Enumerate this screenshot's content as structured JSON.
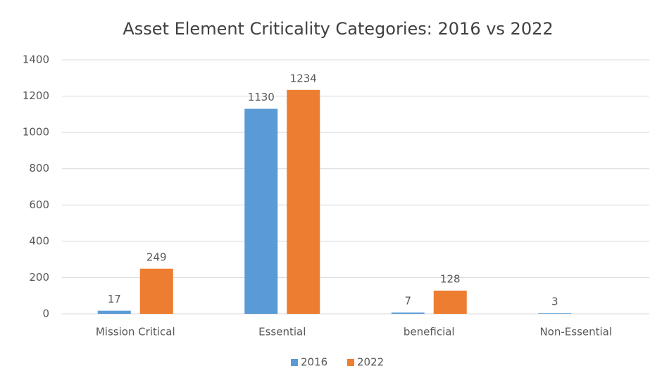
{
  "chart_data": {
    "type": "bar",
    "title": "Asset Element Criticality Categories: 2016 vs 2022",
    "categories": [
      "Mission Critical",
      "Essential",
      "beneficial",
      "Non-Essential"
    ],
    "series": [
      {
        "name": "2016",
        "color": "#5b9bd5",
        "values": [
          17,
          1130,
          7,
          3
        ]
      },
      {
        "name": "2022",
        "color": "#ed7d31",
        "values": [
          249,
          1234,
          128,
          null
        ]
      }
    ],
    "ylim": [
      0,
      1400
    ],
    "yticks": [
      0,
      200,
      400,
      600,
      800,
      1000,
      1200,
      1400
    ],
    "grid": true,
    "legend": "bottom"
  }
}
